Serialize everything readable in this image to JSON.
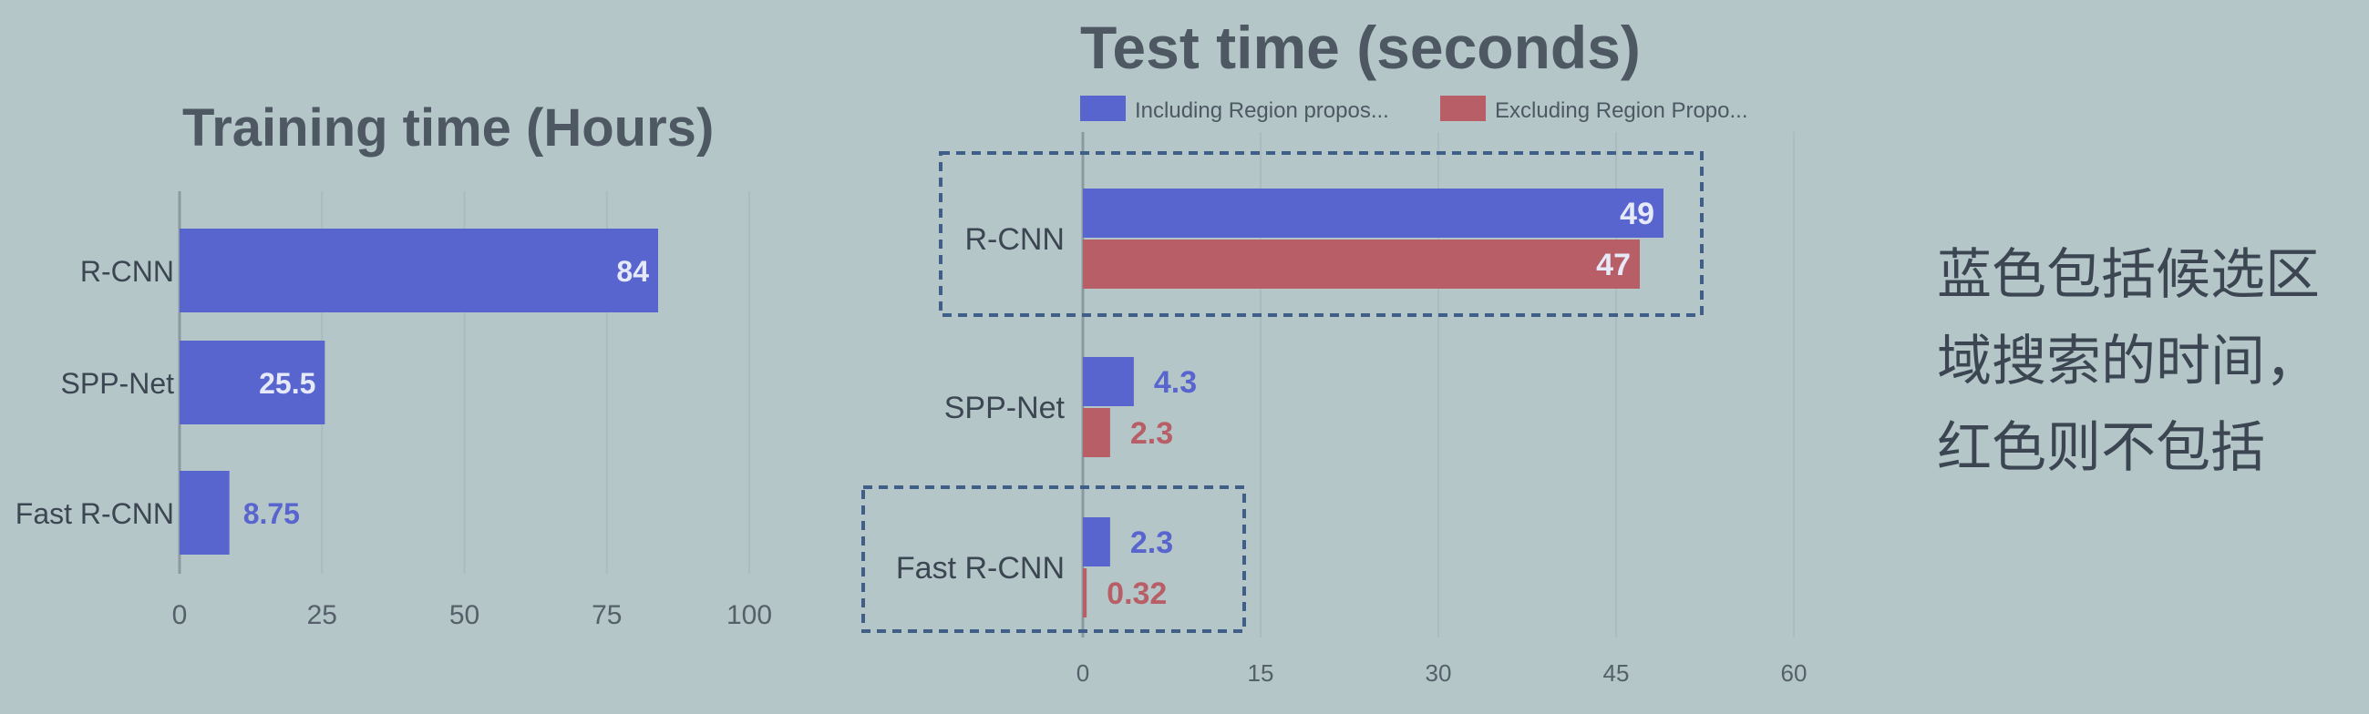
{
  "chart_data": [
    {
      "type": "bar",
      "orientation": "horizontal",
      "title": "Training time (Hours)",
      "categories": [
        "R-CNN",
        "SPP-Net",
        "Fast R-CNN"
      ],
      "values": [
        84,
        25.5,
        8.75
      ],
      "value_labels": [
        "84",
        "25.5",
        "8.75"
      ],
      "xlim": [
        0,
        100
      ],
      "xticks": [
        "0",
        "25",
        "50",
        "75",
        "100"
      ],
      "color": "#5865cf",
      "grid": true
    },
    {
      "type": "bar",
      "orientation": "horizontal",
      "title": "Test time (seconds)",
      "categories": [
        "R-CNN",
        "SPP-Net",
        "Fast R-CNN"
      ],
      "series": [
        {
          "name": "Including Region propos...",
          "values": [
            49,
            4.3,
            2.3
          ],
          "value_labels": [
            "49",
            "4.3",
            "2.3"
          ],
          "color": "#5865cf"
        },
        {
          "name": "Excluding Region Propo...",
          "values": [
            47,
            2.3,
            0.32
          ],
          "value_labels": [
            "47",
            "2.3",
            "0.32"
          ],
          "color": "#b85e66"
        }
      ],
      "xlim": [
        0,
        60
      ],
      "xticks": [
        "0",
        "15",
        "30",
        "45",
        "60"
      ],
      "legend": "top",
      "grid": true,
      "highlighted_categories": [
        "R-CNN",
        "Fast R-CNN"
      ]
    }
  ],
  "annotation": {
    "lines": [
      "蓝色包括候选区",
      "域搜索的时间，",
      "红色则不包括"
    ]
  }
}
